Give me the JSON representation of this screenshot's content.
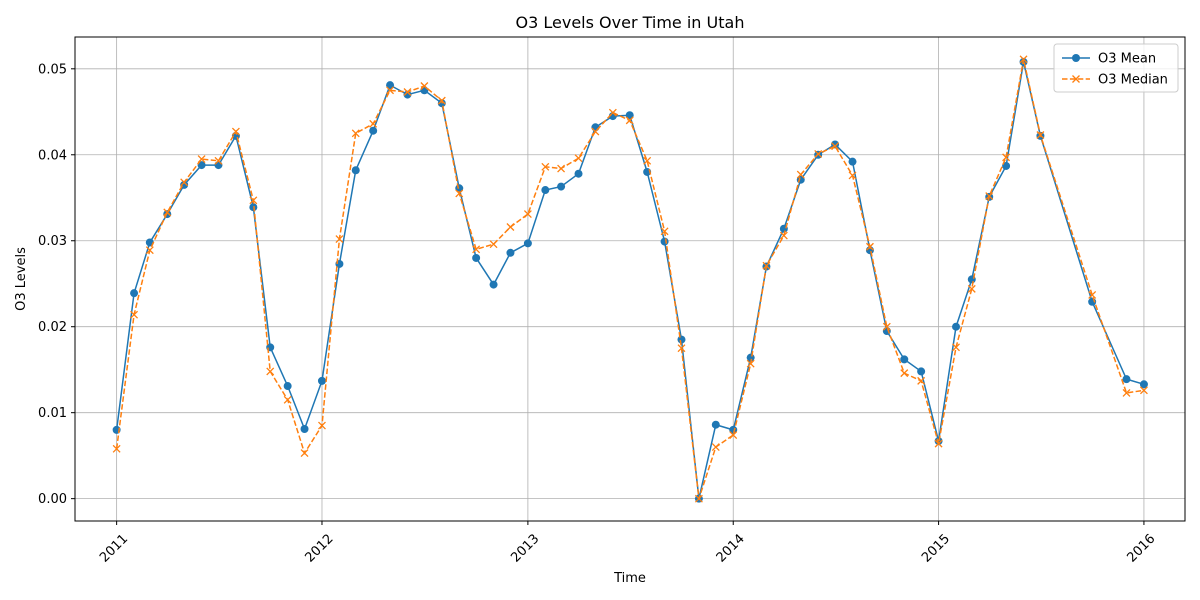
{
  "chart_data": {
    "type": "line",
    "title": "O3 Levels Over Time in Utah",
    "xlabel": "Time",
    "ylabel": "O3 Levels",
    "grid": true,
    "legend_position": "top-right",
    "x_ticks": [
      "2011",
      "2012",
      "2013",
      "2014",
      "2015",
      "2016"
    ],
    "y_ticks": [
      "0.00",
      "0.01",
      "0.02",
      "0.03",
      "0.04",
      "0.05"
    ],
    "xlim": [
      "2010-10-19",
      "2016-03-14"
    ],
    "ylim": [
      -0.0026,
      0.0537
    ],
    "x": [
      "2011-01-01",
      "2011-02-01",
      "2011-03-01",
      "2011-04-01",
      "2011-05-01",
      "2011-06-01",
      "2011-07-01",
      "2011-08-01",
      "2011-09-01",
      "2011-10-01",
      "2011-11-01",
      "2011-12-01",
      "2012-01-01",
      "2012-02-01",
      "2012-03-01",
      "2012-04-01",
      "2012-05-01",
      "2012-06-01",
      "2012-07-01",
      "2012-08-01",
      "2012-09-01",
      "2012-10-01",
      "2012-11-01",
      "2012-12-01",
      "2013-01-01",
      "2013-02-01",
      "2013-03-01",
      "2013-04-01",
      "2013-05-01",
      "2013-06-01",
      "2013-07-01",
      "2013-08-01",
      "2013-09-01",
      "2013-10-01",
      "2013-11-01",
      "2013-12-01",
      "2014-01-01",
      "2014-02-01",
      "2014-03-01",
      "2014-04-01",
      "2014-05-01",
      "2014-06-01",
      "2014-07-01",
      "2014-08-01",
      "2014-09-01",
      "2014-10-01",
      "2014-11-01",
      "2014-12-01",
      "2015-01-01",
      "2015-02-01",
      "2015-03-01",
      "2015-04-01",
      "2015-05-01",
      "2015-06-01",
      "2015-07-01",
      "2015-10-01",
      "2015-12-01",
      "2016-01-01"
    ],
    "series": [
      {
        "name": "O3 Mean",
        "color": "#1f77b4",
        "line_style": "solid",
        "marker": "circle",
        "values": [
          0.008,
          0.0239,
          0.0298,
          0.0331,
          0.0365,
          0.0388,
          0.0388,
          0.0422,
          0.0339,
          0.0176,
          0.0131,
          0.0081,
          0.0137,
          0.0273,
          0.0382,
          0.0428,
          0.0481,
          0.047,
          0.0475,
          0.046,
          0.0361,
          0.028,
          0.0249,
          0.0286,
          0.0297,
          0.0359,
          0.0363,
          0.0378,
          0.0432,
          0.0445,
          0.0446,
          0.038,
          0.0299,
          0.0185,
          0.0,
          0.0086,
          0.008,
          0.0164,
          0.027,
          0.0314,
          0.0371,
          0.04,
          0.0412,
          0.0392,
          0.0289,
          0.0195,
          0.0162,
          0.0148,
          0.0067,
          0.02,
          0.0255,
          0.0351,
          0.0387,
          0.0508,
          0.0422,
          0.0229,
          0.0139,
          0.0133
        ]
      },
      {
        "name": "O3 Median",
        "color": "#ff7f0e",
        "line_style": "dashed",
        "marker": "x",
        "values": [
          0.0058,
          0.0214,
          0.0289,
          0.0333,
          0.0368,
          0.0395,
          0.0393,
          0.0427,
          0.0347,
          0.0148,
          0.0115,
          0.0053,
          0.0085,
          0.0302,
          0.0425,
          0.0436,
          0.0475,
          0.0473,
          0.048,
          0.0463,
          0.0355,
          0.029,
          0.0296,
          0.0316,
          0.0331,
          0.0386,
          0.0384,
          0.0396,
          0.0427,
          0.0449,
          0.044,
          0.0393,
          0.0311,
          0.0175,
          0.0,
          0.006,
          0.0074,
          0.0157,
          0.0271,
          0.0306,
          0.0377,
          0.0401,
          0.041,
          0.0376,
          0.0293,
          0.02,
          0.0146,
          0.0137,
          0.0064,
          0.0176,
          0.0244,
          0.0352,
          0.0397,
          0.0511,
          0.0423,
          0.0237,
          0.0123,
          0.0126
        ]
      }
    ]
  }
}
